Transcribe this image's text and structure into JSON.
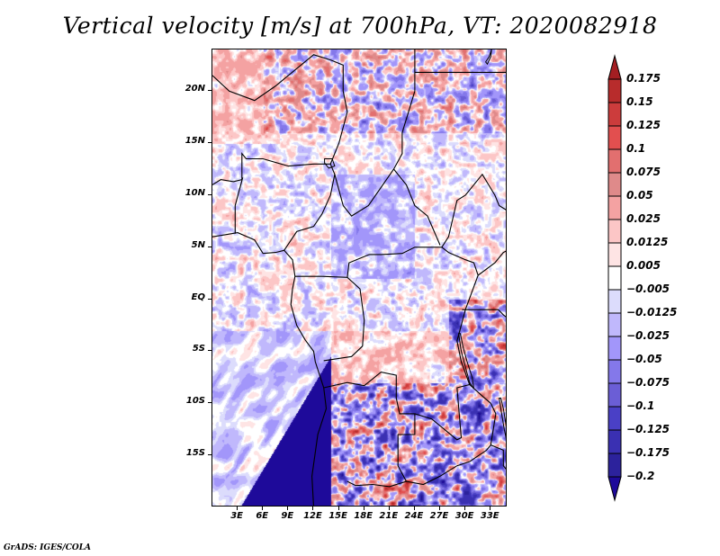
{
  "title": "Vertical velocity [m/s] at 700hPa, VT: 2020082918",
  "credit": "GrADS: IGES/COLA",
  "chart_data": {
    "type": "heatmap",
    "title": "Vertical velocity [m/s] at 700hPa, VT: 2020082918",
    "variable": "Vertical velocity",
    "units": "m/s",
    "level": "700hPa",
    "valid_time": "2020082918",
    "xlabel": "",
    "ylabel": "",
    "lon_range": [
      0,
      35
    ],
    "lat_range": [
      -20,
      24
    ],
    "y_ticks": [
      {
        "label": "20N",
        "value": 20
      },
      {
        "label": "15N",
        "value": 15
      },
      {
        "label": "10N",
        "value": 10
      },
      {
        "label": "5N",
        "value": 5
      },
      {
        "label": "EQ",
        "value": 0
      },
      {
        "label": "5S",
        "value": -5
      },
      {
        "label": "10S",
        "value": -10
      },
      {
        "label": "15S",
        "value": -15
      }
    ],
    "x_ticks": [
      {
        "label": "3E",
        "value": 3
      },
      {
        "label": "6E",
        "value": 6
      },
      {
        "label": "9E",
        "value": 9
      },
      {
        "label": "12E",
        "value": 12
      },
      {
        "label": "15E",
        "value": 15
      },
      {
        "label": "18E",
        "value": 18
      },
      {
        "label": "21E",
        "value": 21
      },
      {
        "label": "24E",
        "value": 24
      },
      {
        "label": "27E",
        "value": 27
      },
      {
        "label": "30E",
        "value": 30
      },
      {
        "label": "33E",
        "value": 33
      }
    ],
    "colorbar": {
      "orientation": "vertical",
      "position": "right",
      "extend": "both",
      "levels": [
        "0.175",
        "0.15",
        "0.125",
        "0.1",
        "0.075",
        "0.05",
        "0.025",
        "0.0125",
        "0.005",
        "-0.005",
        "-0.0125",
        "-0.025",
        "-0.05",
        "-0.075",
        "-0.1",
        "-0.125",
        "-0.175",
        "-0.2"
      ],
      "colors": [
        "#a41e22",
        "#b82c2c",
        "#cc3c3c",
        "#e24f4f",
        "#e26f6f",
        "#df8a8a",
        "#f4a2a2",
        "#fcc6c6",
        "#fee4e4",
        "#ffffff",
        "#dcdcfc",
        "#c0b8fc",
        "#a296fa",
        "#8478ea",
        "#6b5ed6",
        "#4a40c6",
        "#3a30b2",
        "#2c229c",
        "#1e0a9a"
      ]
    }
  }
}
